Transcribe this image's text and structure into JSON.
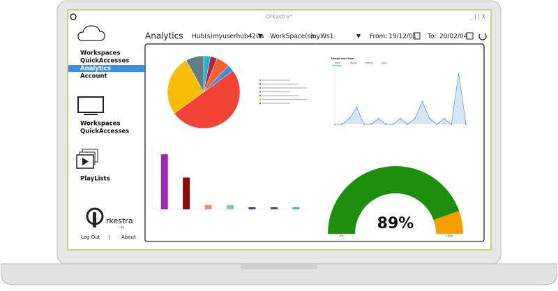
{
  "window": {
    "title": "Orkestra*",
    "controls": "_ | | X"
  },
  "sidebar": {
    "menu": [
      "Workspaces",
      "QuickAccesses",
      "Analytics",
      "Account"
    ],
    "devices_menu": [
      "Workspaces",
      "QuickAccesses"
    ],
    "media_menu": [
      "PlayLists"
    ],
    "logo": "rkestra",
    "logo_by": "by",
    "footer": [
      "Log Out",
      "|",
      "About"
    ]
  },
  "toolbar": {
    "page": "Analytics",
    "hub_label": "Hub(s):",
    "hub": "myuserhub420a",
    "workspace_label": "WorkSpace(s):",
    "workspace": "myWs1",
    "from_label": "From:",
    "from": "19/12/01",
    "to_label": "To:",
    "to": "20/02/04"
  },
  "dashboard": {
    "pie": {
      "values": [
        3,
        3,
        6,
        3,
        50,
        27,
        8
      ],
      "colors": [
        "#1fb5c9",
        "#b0234a",
        "#f5612f",
        "#3b8de0",
        "#f44336",
        "#fbbc05",
        "#607d8b"
      ]
    },
    "line": {
      "title": "Usage over time",
      "tabs": [
        "Days",
        "Weeks",
        "Months",
        "Years"
      ],
      "values": [
        0,
        0,
        1,
        3,
        0,
        0,
        1,
        0,
        0,
        1,
        0,
        1,
        4,
        1,
        0,
        1,
        0,
        9,
        0
      ],
      "ylim": [
        0,
        10
      ],
      "color": "#5b9bd5"
    },
    "bars": {
      "values": [
        13,
        7.5,
        1,
        1,
        0.5,
        0.5,
        0.5
      ],
      "ylim": [
        0,
        14
      ],
      "colors": [
        "#9c27b0",
        "#8b0a0a",
        "#e8907a",
        "#8bc79a",
        "#3f3d8f",
        "#2f5f5f",
        "#26c6da"
      ]
    },
    "gauge": {
      "value": 89,
      "value_label": "89%",
      "lim": [
        0,
        100
      ],
      "min_label": "0%",
      "max_label": "100%",
      "colors": [
        "#1e8e0e",
        "#f59f00"
      ]
    }
  }
}
